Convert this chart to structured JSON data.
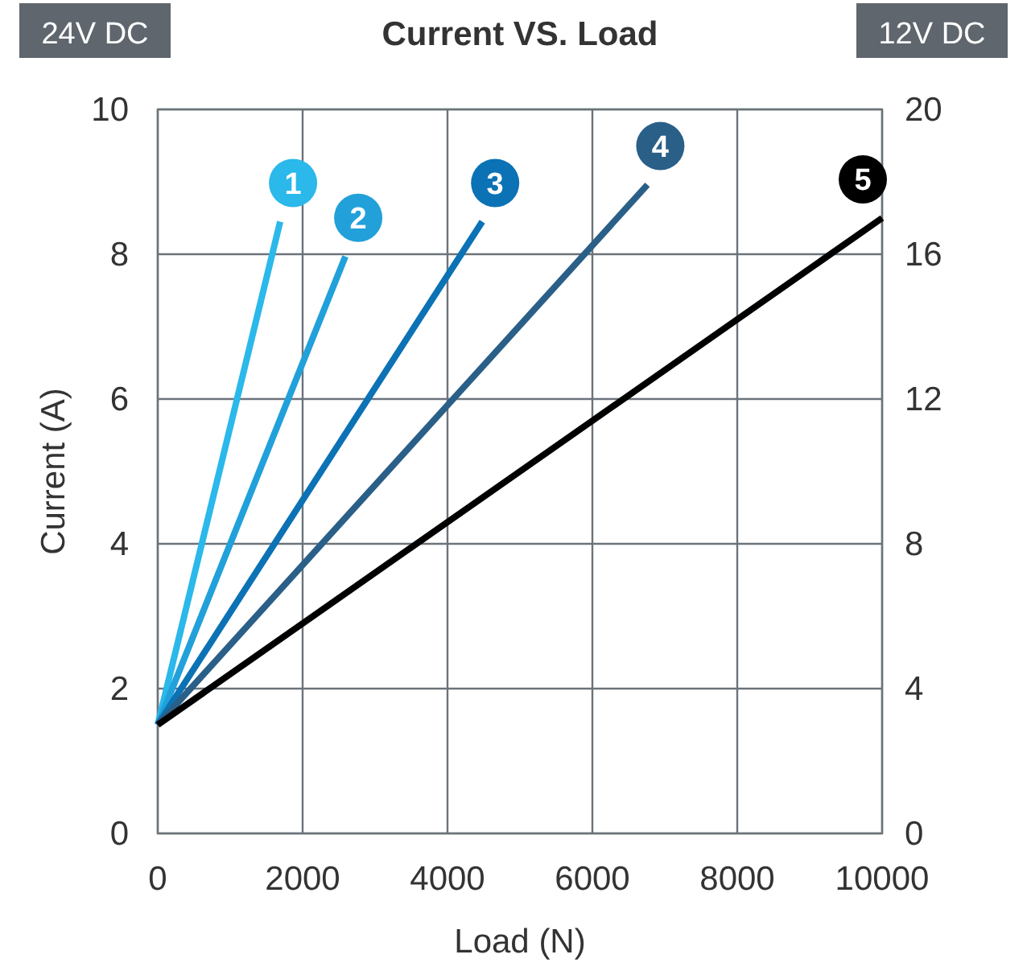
{
  "chart_data": {
    "type": "line",
    "title": "Current VS. Load",
    "xlabel": "Load (N)",
    "ylabel": "Current (A)",
    "annotations": [
      "24V DC",
      "12V DC"
    ],
    "xlim": [
      0,
      10000
    ],
    "xticks": [
      0,
      2000,
      4000,
      6000,
      8000,
      10000
    ],
    "ylim": [
      0,
      10
    ],
    "yticks": [
      0,
      2,
      4,
      6,
      8,
      10
    ],
    "y2lim": [
      0,
      20
    ],
    "y2ticks": [
      0,
      4,
      8,
      12,
      16,
      20
    ],
    "grid": true,
    "marker": "none",
    "line_style": "solid",
    "series": [
      {
        "name": "1",
        "color": "#2bb8ea",
        "x": [
          0,
          1690
        ],
        "values": [
          1.5,
          8.45
        ]
      },
      {
        "name": "2",
        "color": "#22a0da",
        "x": [
          0,
          2590
        ],
        "values": [
          1.5,
          7.97
        ]
      },
      {
        "name": "3",
        "color": "#0b72b5",
        "x": [
          0,
          4480
        ],
        "values": [
          1.5,
          8.45
        ]
      },
      {
        "name": "4",
        "color": "#2a5f88",
        "x": [
          0,
          6760
        ],
        "values": [
          1.5,
          8.96
        ]
      },
      {
        "name": "5",
        "color": "#000000",
        "x": [
          0,
          10000
        ],
        "values": [
          1.5,
          8.5
        ]
      }
    ]
  }
}
